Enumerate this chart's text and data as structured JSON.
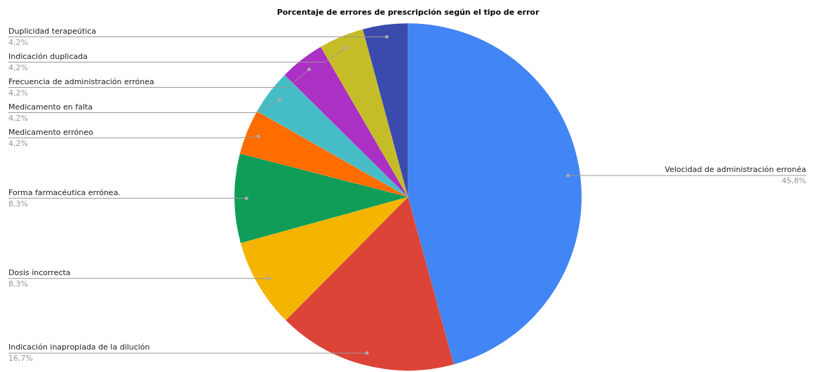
{
  "chart_data": {
    "type": "pie",
    "title": "Porcentaje de errores de prescripción según el tipo de error",
    "categories": [
      "Velocidad de administración erronéa",
      "Indicación inapropiada de la dilución",
      "Dosis incorrecta",
      "Forma farmacéutica errónea.",
      "Medicamento erróneo",
      "Medicamento en falta",
      "Frecuencia de administración errónea",
      "Indicación duplicada",
      "Duplicidad terapeútica"
    ],
    "values": [
      45.8,
      16.7,
      8.3,
      8.3,
      4.2,
      4.2,
      4.2,
      4.2,
      4.2
    ],
    "value_labels": [
      "45,8%",
      "16,7%",
      "8,3%",
      "8,3%",
      "4,2%",
      "4,2%",
      "4,2%",
      "4,2%",
      "4,2%"
    ],
    "colors": [
      "#4285f4",
      "#db4437",
      "#f4b400",
      "#0f9d58",
      "#ff6d01",
      "#46bdc6",
      "#ab30c4",
      "#c5bd28",
      "#3b4aad"
    ],
    "legend": false
  }
}
